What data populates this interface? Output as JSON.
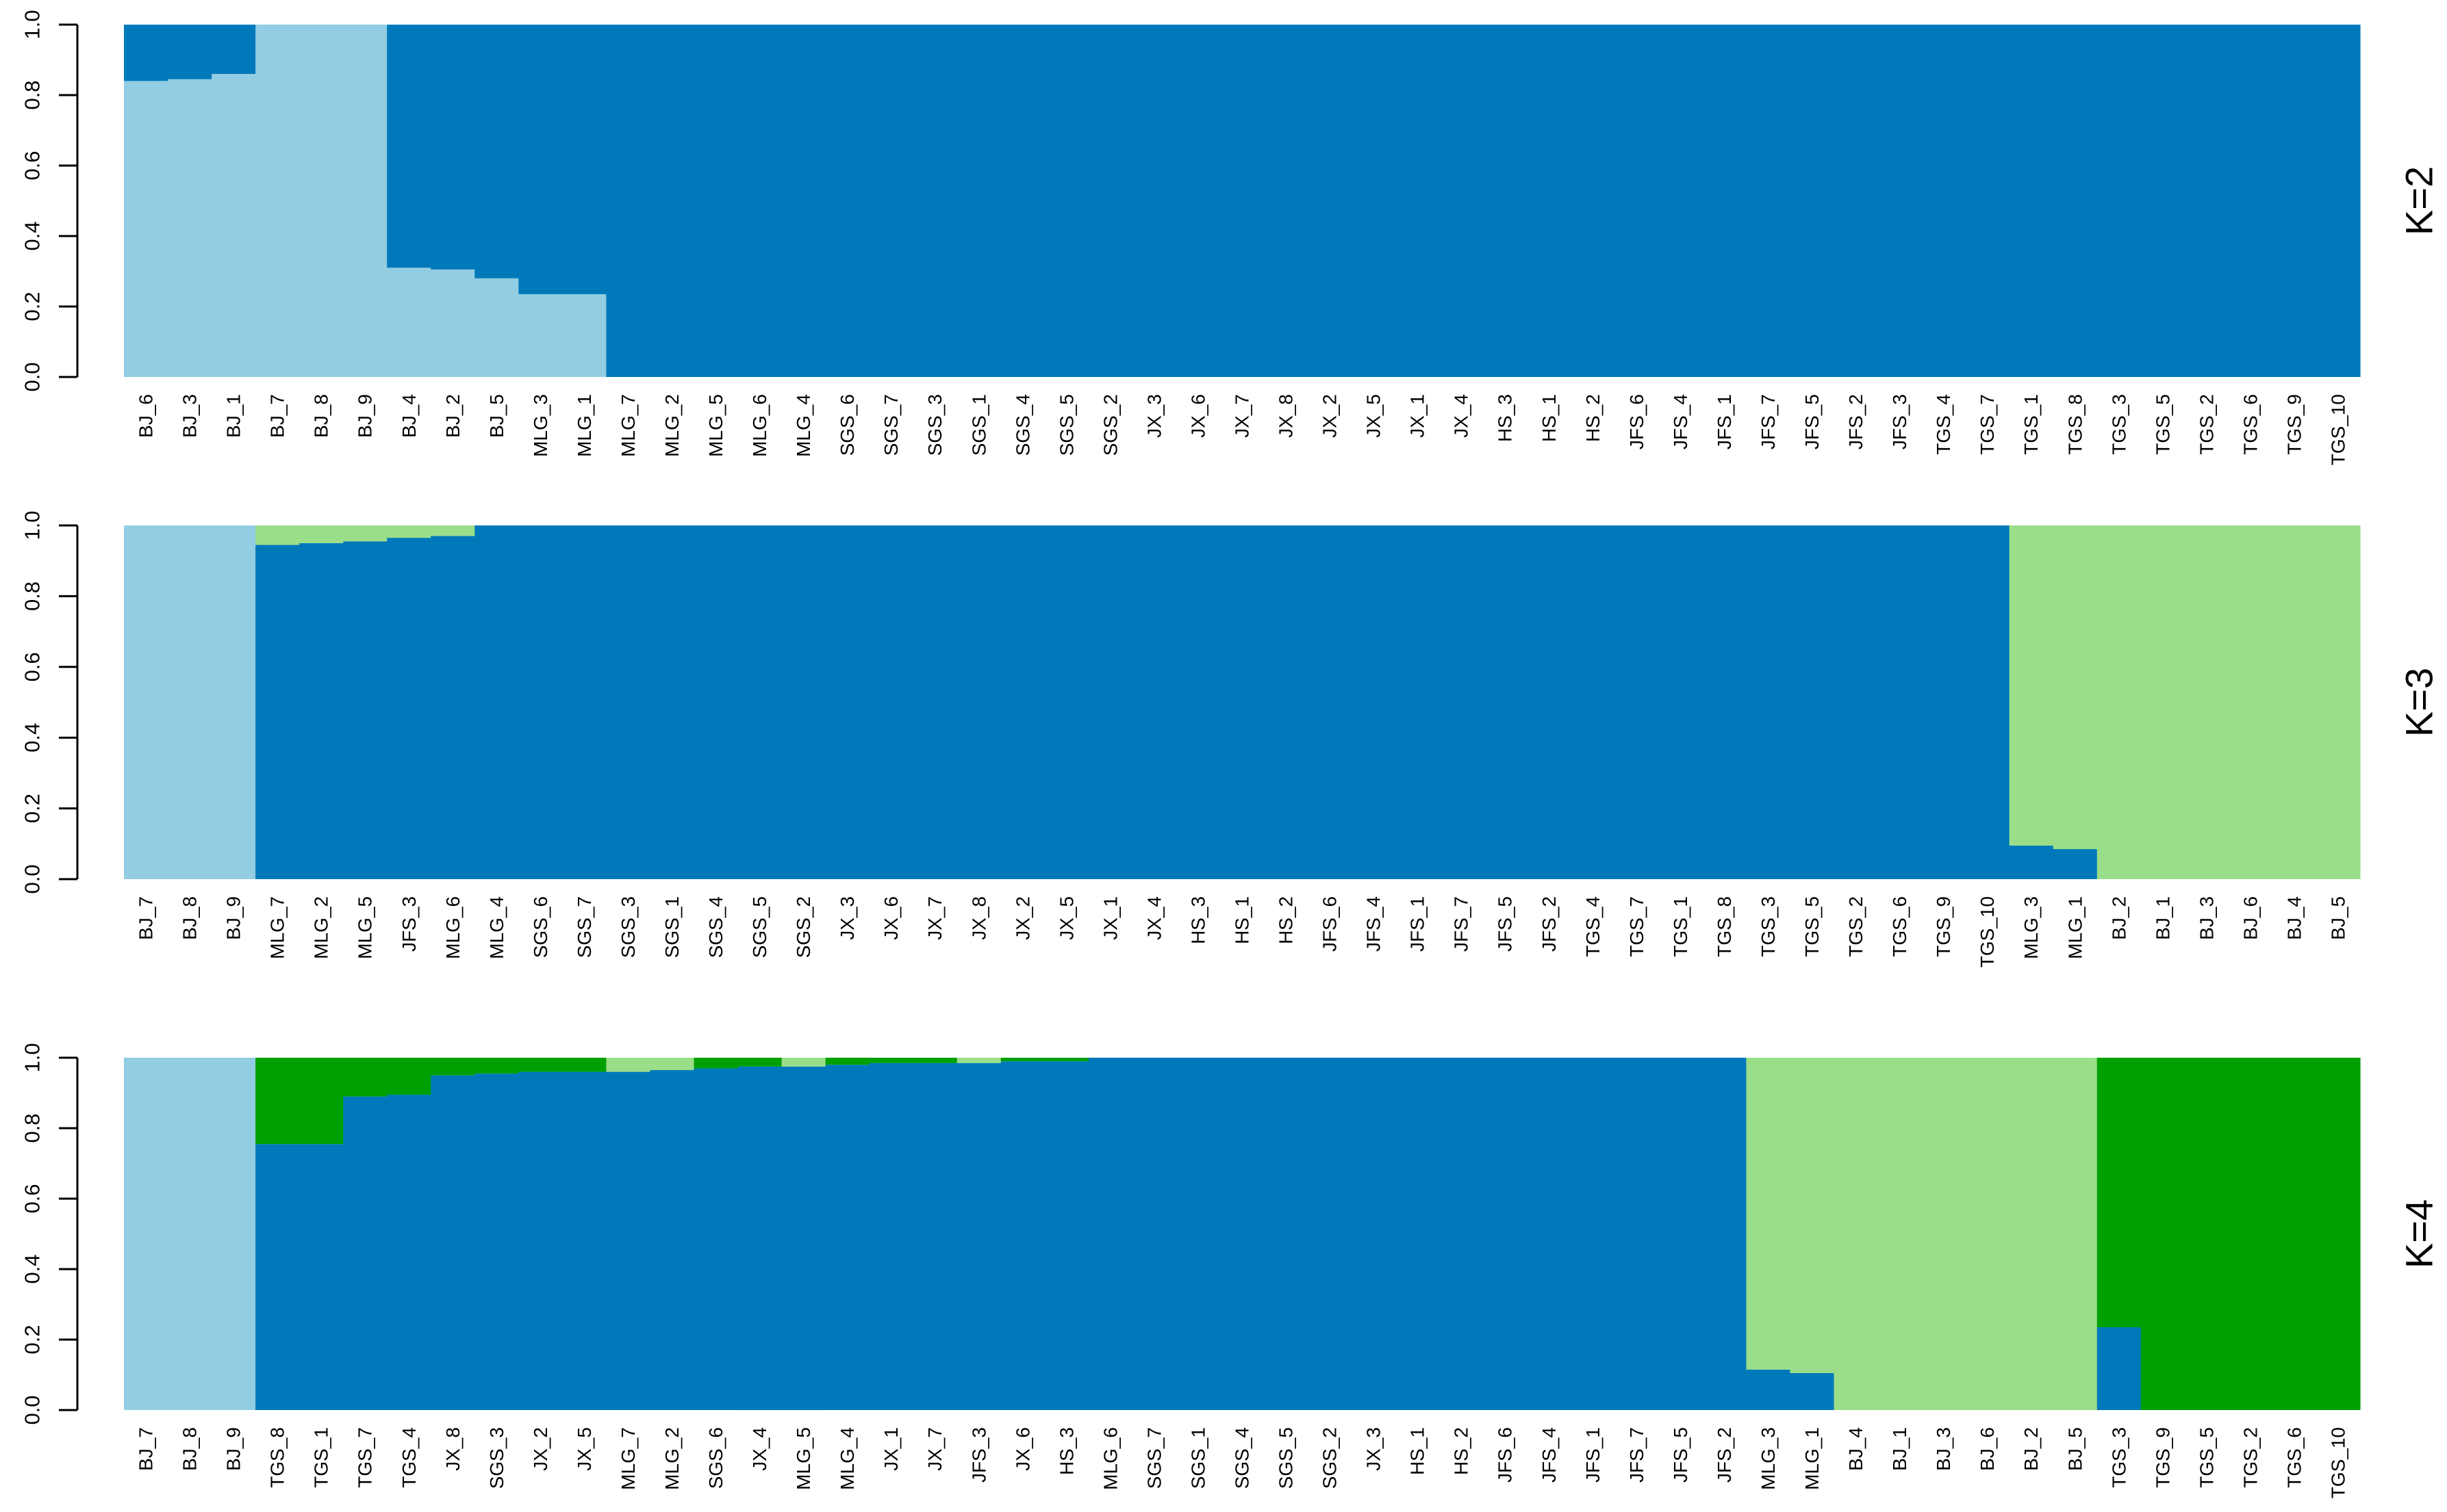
{
  "colors": {
    "light_blue": "#92CDE3",
    "dark_blue": "#0079BA",
    "light_green": "#9ADE8A",
    "dark_green": "#00A000"
  },
  "chart_data": [
    {
      "type": "bar",
      "stacked": true,
      "panel_label": "K=2",
      "yticks": [
        "0.0",
        "0.2",
        "0.4",
        "0.6",
        "0.8",
        "1.0"
      ],
      "ylim": [
        0,
        1
      ],
      "categories": [
        "BJ_6",
        "BJ_3",
        "BJ_1",
        "BJ_7",
        "BJ_8",
        "BJ_9",
        "BJ_4",
        "BJ_2",
        "BJ_5",
        "MLG_3",
        "MLG_1",
        "MLG_7",
        "MLG_2",
        "MLG_5",
        "MLG_6",
        "MLG_4",
        "SGS_6",
        "SGS_7",
        "SGS_3",
        "SGS_1",
        "SGS_4",
        "SGS_5",
        "SGS_2",
        "JX_3",
        "JX_6",
        "JX_7",
        "JX_8",
        "JX_2",
        "JX_5",
        "JX_1",
        "JX_4",
        "HS_3",
        "HS_1",
        "HS_2",
        "JFS_6",
        "JFS_4",
        "JFS_1",
        "JFS_7",
        "JFS_5",
        "JFS_2",
        "JFS_3",
        "TGS_4",
        "TGS_7",
        "TGS_1",
        "TGS_8",
        "TGS_3",
        "TGS_5",
        "TGS_2",
        "TGS_6",
        "TGS_9",
        "TGS_10"
      ],
      "series": [
        {
          "color": "#92CDE3",
          "values": [
            0.84,
            0.845,
            0.86,
            1,
            1,
            1,
            0.31,
            0.305,
            0.28,
            0.235,
            0.235,
            0,
            0,
            0,
            0,
            0,
            0,
            0,
            0,
            0,
            0,
            0,
            0,
            0,
            0,
            0,
            0,
            0,
            0,
            0,
            0,
            0,
            0,
            0,
            0,
            0,
            0,
            0,
            0,
            0,
            0,
            0,
            0,
            0,
            0,
            0,
            0,
            0,
            0,
            0,
            0
          ]
        },
        {
          "color": "#0079BA",
          "values": [
            0.16,
            0.155,
            0.14,
            0,
            0,
            0,
            0.69,
            0.695,
            0.72,
            0.765,
            0.765,
            1,
            1,
            1,
            1,
            1,
            1,
            1,
            1,
            1,
            1,
            1,
            1,
            1,
            1,
            1,
            1,
            1,
            1,
            1,
            1,
            1,
            1,
            1,
            1,
            1,
            1,
            1,
            1,
            1,
            1,
            1,
            1,
            1,
            1,
            1,
            1,
            1,
            1,
            1,
            1
          ]
        }
      ]
    },
    {
      "type": "bar",
      "stacked": true,
      "panel_label": "K=3",
      "yticks": [
        "0.0",
        "0.2",
        "0.4",
        "0.6",
        "0.8",
        "1.0"
      ],
      "ylim": [
        0,
        1
      ],
      "categories": [
        "BJ_7",
        "BJ_8",
        "BJ_9",
        "MLG_7",
        "MLG_2",
        "MLG_5",
        "JFS_3",
        "MLG_6",
        "MLG_4",
        "SGS_6",
        "SGS_7",
        "SGS_3",
        "SGS_1",
        "SGS_4",
        "SGS_5",
        "SGS_2",
        "JX_3",
        "JX_6",
        "JX_7",
        "JX_8",
        "JX_2",
        "JX_5",
        "JX_1",
        "JX_4",
        "HS_3",
        "HS_1",
        "HS_2",
        "JFS_6",
        "JFS_4",
        "JFS_1",
        "JFS_7",
        "JFS_5",
        "JFS_2",
        "TGS_4",
        "TGS_7",
        "TGS_1",
        "TGS_8",
        "TGS_3",
        "TGS_5",
        "TGS_2",
        "TGS_6",
        "TGS_9",
        "TGS_10",
        "MLG_3",
        "MLG_1",
        "BJ_2",
        "BJ_1",
        "BJ_3",
        "BJ_6",
        "BJ_4",
        "BJ_5"
      ],
      "series": [
        {
          "color": "#92CDE3",
          "values": [
            1,
            1,
            1,
            0,
            0,
            0,
            0,
            0,
            0,
            0,
            0,
            0,
            0,
            0,
            0,
            0,
            0,
            0,
            0,
            0,
            0,
            0,
            0,
            0,
            0,
            0,
            0,
            0,
            0,
            0,
            0,
            0,
            0,
            0,
            0,
            0,
            0,
            0,
            0,
            0,
            0,
            0,
            0,
            0,
            0,
            0,
            0,
            0,
            0,
            0,
            0
          ]
        },
        {
          "color": "#0079BA",
          "values": [
            0,
            0,
            0,
            0.945,
            0.95,
            0.955,
            0.965,
            0.97,
            1,
            1,
            1,
            1,
            1,
            1,
            1,
            1,
            1,
            1,
            1,
            1,
            1,
            1,
            1,
            1,
            1,
            1,
            1,
            1,
            1,
            1,
            1,
            1,
            1,
            1,
            1,
            1,
            1,
            1,
            1,
            1,
            1,
            1,
            1,
            0.095,
            0.085,
            0,
            0,
            0,
            0,
            0,
            0
          ]
        },
        {
          "color": "#9ADE8A",
          "values": [
            0,
            0,
            0,
            0.055,
            0.05,
            0.045,
            0.035,
            0.03,
            0,
            0,
            0,
            0,
            0,
            0,
            0,
            0,
            0,
            0,
            0,
            0,
            0,
            0,
            0,
            0,
            0,
            0,
            0,
            0,
            0,
            0,
            0,
            0,
            0,
            0,
            0,
            0,
            0,
            0,
            0,
            0,
            0,
            0,
            0,
            0.905,
            0.915,
            1,
            1,
            1,
            1,
            1,
            1
          ]
        }
      ]
    },
    {
      "type": "bar",
      "stacked": true,
      "panel_label": "K=4",
      "yticks": [
        "0.0",
        "0.2",
        "0.4",
        "0.6",
        "0.8",
        "1.0"
      ],
      "ylim": [
        0,
        1
      ],
      "categories": [
        "BJ_7",
        "BJ_8",
        "BJ_9",
        "TGS_8",
        "TGS_1",
        "TGS_7",
        "TGS_4",
        "JX_8",
        "SGS_3",
        "JX_2",
        "JX_5",
        "MLG_7",
        "MLG_2",
        "SGS_6",
        "JX_4",
        "MLG_5",
        "MLG_4",
        "JX_1",
        "JX_7",
        "JFS_3",
        "JX_6",
        "HS_3",
        "MLG_6",
        "SGS_7",
        "SGS_1",
        "SGS_4",
        "SGS_5",
        "SGS_2",
        "JX_3",
        "HS_1",
        "HS_2",
        "JFS_6",
        "JFS_4",
        "JFS_1",
        "JFS_7",
        "JFS_5",
        "JFS_2",
        "MLG_3",
        "MLG_1",
        "BJ_4",
        "BJ_1",
        "BJ_3",
        "BJ_6",
        "BJ_2",
        "BJ_5",
        "TGS_3",
        "TGS_9",
        "TGS_5",
        "TGS_2",
        "TGS_6",
        "TGS_10"
      ],
      "series": [
        {
          "color": "#92CDE3",
          "values": [
            1,
            1,
            1,
            0,
            0,
            0,
            0,
            0,
            0,
            0,
            0,
            0,
            0,
            0,
            0,
            0,
            0,
            0,
            0,
            0,
            0,
            0,
            0,
            0,
            0,
            0,
            0,
            0,
            0,
            0,
            0,
            0,
            0,
            0,
            0,
            0,
            0,
            0,
            0,
            0,
            0,
            0,
            0,
            0,
            0,
            0,
            0,
            0,
            0,
            0,
            0
          ]
        },
        {
          "color": "#0079BA",
          "values": [
            0,
            0,
            0,
            0.755,
            0.755,
            0.89,
            0.895,
            0.95,
            0.955,
            0.96,
            0.96,
            0.96,
            0.965,
            0.97,
            0.975,
            0.975,
            0.98,
            0.985,
            0.985,
            0.985,
            0.99,
            0.99,
            1,
            1,
            1,
            1,
            1,
            1,
            1,
            1,
            1,
            1,
            1,
            1,
            1,
            1,
            1,
            0.115,
            0.105,
            0,
            0,
            0,
            0,
            0,
            0,
            0.235,
            0,
            0,
            0,
            0,
            0
          ]
        },
        {
          "color": "#9ADE8A",
          "values": [
            0,
            0,
            0,
            0,
            0,
            0,
            0,
            0,
            0,
            0,
            0,
            0.04,
            0.035,
            0,
            0,
            0.025,
            0,
            0,
            0,
            0.015,
            0,
            0,
            0,
            0,
            0,
            0,
            0,
            0,
            0,
            0,
            0,
            0,
            0,
            0,
            0,
            0,
            0,
            0.885,
            0.895,
            1,
            1,
            1,
            1,
            1,
            1,
            0,
            0,
            0,
            0,
            0,
            0
          ]
        },
        {
          "color": "#00A000",
          "values": [
            0,
            0,
            0,
            0.245,
            0.245,
            0.11,
            0.105,
            0.05,
            0.045,
            0.04,
            0.04,
            0,
            0,
            0.03,
            0.025,
            0,
            0.02,
            0.015,
            0.015,
            0,
            0.01,
            0.01,
            0,
            0,
            0,
            0,
            0,
            0,
            0,
            0,
            0,
            0,
            0,
            0,
            0,
            0,
            0,
            0,
            0,
            0,
            0,
            0,
            0,
            0,
            0,
            0.765,
            1,
            1,
            1,
            1,
            1
          ]
        }
      ]
    }
  ]
}
